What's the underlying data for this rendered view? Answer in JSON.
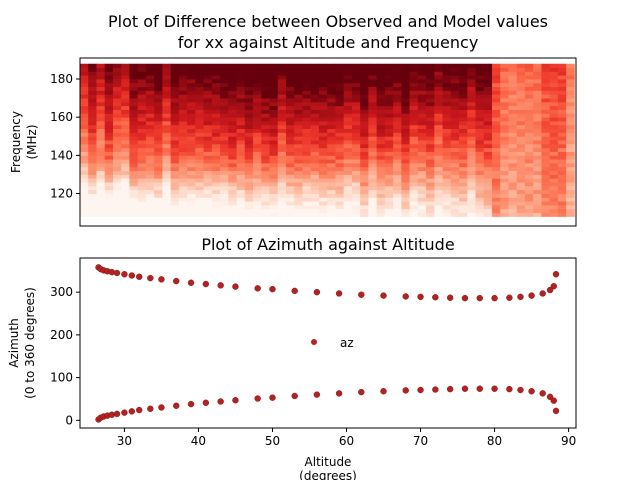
{
  "chart_data": [
    {
      "type": "heatmap",
      "title_line1": "Plot of Difference between Observed and Model values",
      "title_line2": "for xx against Altitude and Frequency",
      "ylabel_line1": "Frequency",
      "ylabel_line2": "(MHz)",
      "xlim": [
        26.5,
        88.5
      ],
      "ylim": [
        103,
        191
      ],
      "yticks": [
        120,
        140,
        160,
        180
      ],
      "data_extent": {
        "x": [
          26.5,
          88.3
        ],
        "y": [
          108,
          188
        ]
      },
      "colormap": "Reds",
      "description_of_values": [
        {
          "x": 27,
          "y": 110,
          "v": 0.05
        },
        {
          "x": 40,
          "y": 130,
          "v": 0.3
        },
        {
          "x": 60,
          "y": 170,
          "v": 0.9
        },
        {
          "x": 75,
          "y": 180,
          "v": 0.95
        },
        {
          "x": 85,
          "y": 150,
          "v": 0.4
        }
      ]
    },
    {
      "type": "scatter",
      "title": "Plot of Azimuth against Altitude",
      "xlabel_line1": "Altitude",
      "xlabel_line2": "(degrees)",
      "ylabel_line1": "Azimuth",
      "ylabel_line2": "(0 to 360 degrees)",
      "xlim": [
        24,
        91
      ],
      "ylim": [
        -18,
        380
      ],
      "xticks": [
        30,
        40,
        50,
        60,
        70,
        80,
        90
      ],
      "yticks": [
        0,
        100,
        200,
        300
      ],
      "legend": {
        "label": "az",
        "placement": "center"
      },
      "marker_color": "#b22222",
      "series": [
        {
          "name": "az",
          "x": [
            26.5,
            26.8,
            27.2,
            27.7,
            28.3,
            29,
            30,
            31,
            32,
            33.5,
            35,
            37,
            39,
            41,
            43,
            45,
            48,
            50,
            53,
            56,
            59,
            62,
            65,
            68,
            70,
            72,
            74,
            76,
            78,
            80,
            82,
            83.5,
            85,
            86.5,
            87.5,
            88,
            88.3
          ],
          "y": [
            358,
            354,
            351,
            349,
            347,
            345,
            342,
            339,
            336,
            333,
            330,
            326,
            322,
            319,
            316,
            313,
            309,
            307,
            303,
            300,
            297,
            294,
            292,
            290,
            289,
            288,
            287,
            286,
            286,
            286,
            287,
            289,
            292,
            297,
            305,
            314,
            342
          ]
        },
        {
          "name": "az",
          "x": [
            26.5,
            26.8,
            27.2,
            27.7,
            28.3,
            29,
            30,
            31,
            32,
            33.5,
            35,
            37,
            39,
            41,
            43,
            45,
            48,
            50,
            53,
            56,
            59,
            62,
            65,
            68,
            70,
            72,
            74,
            76,
            78,
            80,
            82,
            83.5,
            85,
            86.5,
            87.5,
            88,
            88.3
          ],
          "y": [
            2,
            6,
            9,
            11,
            13,
            15,
            18,
            21,
            24,
            27,
            30,
            34,
            38,
            41,
            44,
            47,
            51,
            53,
            57,
            60,
            63,
            66,
            68,
            70,
            71,
            72,
            73,
            74,
            74,
            74,
            73,
            71,
            68,
            63,
            55,
            46,
            22
          ]
        }
      ]
    }
  ]
}
